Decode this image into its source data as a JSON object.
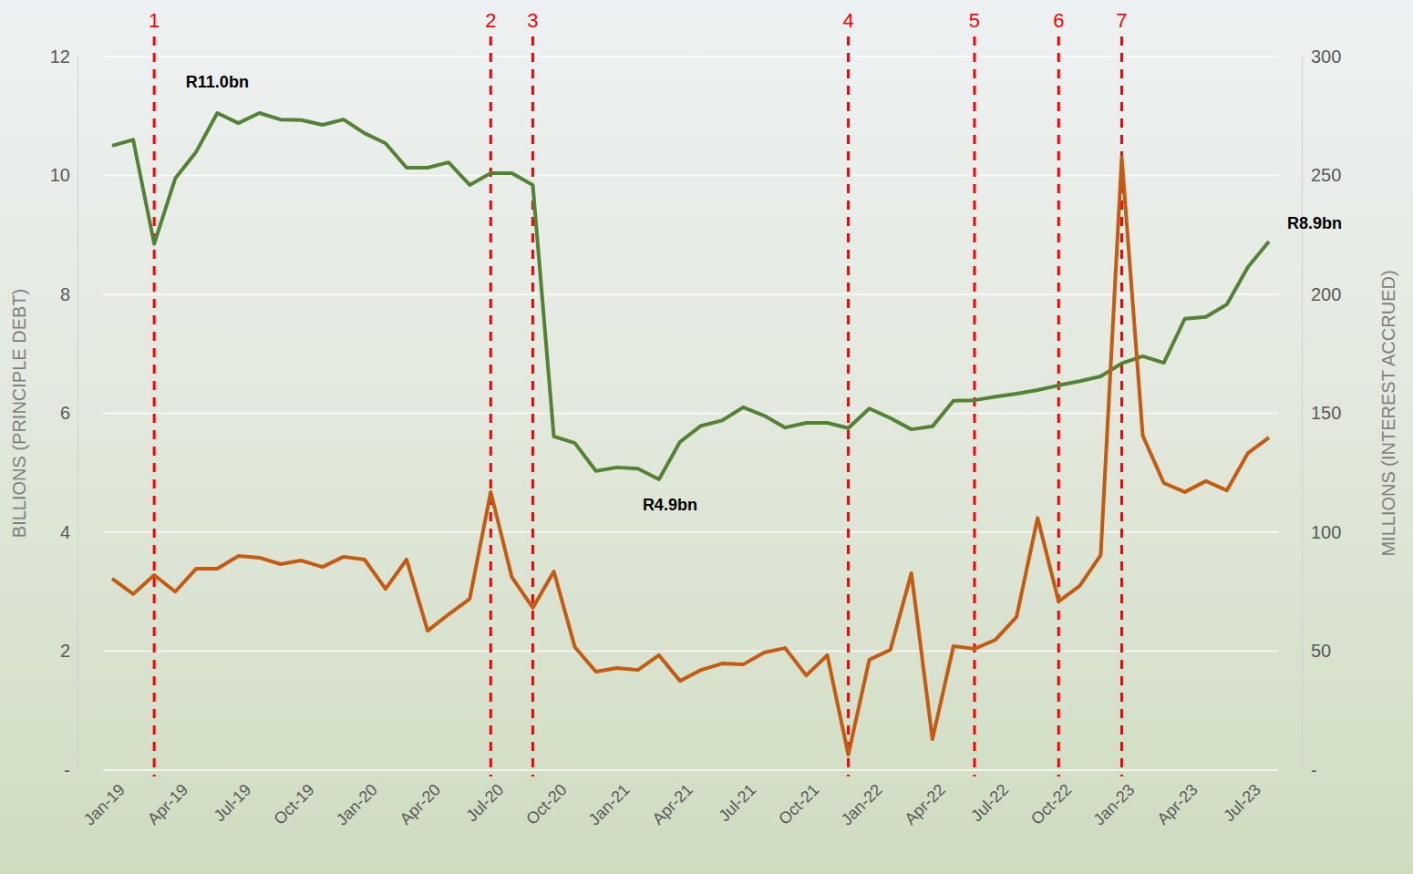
{
  "chart_data": {
    "type": "line",
    "categories": [
      "Jan-19",
      null,
      null,
      "Apr-19",
      null,
      null,
      "Jul-19",
      null,
      null,
      "Oct-19",
      null,
      null,
      "Jan-20",
      null,
      null,
      "Apr-20",
      null,
      null,
      "Jul-20",
      null,
      null,
      "Oct-20",
      null,
      null,
      "Jan-21",
      null,
      null,
      "Apr-21",
      null,
      null,
      "Jul-21",
      null,
      null,
      "Oct-21",
      null,
      null,
      "Jan-22",
      null,
      null,
      "Apr-22",
      null,
      null,
      "Jul-22",
      null,
      null,
      "Oct-22",
      null,
      null,
      "Jan-23",
      null,
      null,
      "Apr-23",
      null,
      null,
      "Jul-23",
      null
    ],
    "ylabel": "BILLIONS (PRINCIPLE DEBT)",
    "y2label": "MILLIONS (INTEREST ACCRUED)",
    "ylim": [
      0,
      12
    ],
    "yticks": [
      {
        "value": 0,
        "label": "-"
      },
      2,
      4,
      6,
      8,
      10,
      12
    ],
    "y2lim": [
      0,
      300
    ],
    "y2ticks": [
      {
        "value": 0,
        "label": "-"
      },
      50,
      100,
      150,
      200,
      250,
      300
    ],
    "grid": true,
    "series": [
      {
        "color": "#548235",
        "values": [
          10.5,
          10.6,
          8.85,
          9.95,
          10.4,
          11.05,
          10.88,
          11.05,
          10.94,
          10.93,
          10.85,
          10.94,
          10.71,
          10.54,
          10.13,
          10.13,
          10.22,
          9.84,
          10.04,
          10.04,
          9.84,
          5.61,
          5.5,
          5.03,
          5.09,
          5.07,
          4.89,
          5.52,
          5.79,
          5.88,
          6.1,
          5.96,
          5.76,
          5.84,
          5.84,
          5.75,
          6.08,
          5.92,
          5.73,
          5.78,
          6.21,
          6.22,
          6.28,
          6.33,
          6.39,
          6.47,
          6.54,
          6.62,
          6.84,
          6.96,
          6.85,
          7.59,
          7.62,
          7.83,
          8.46,
          8.89
        ],
        "labels": [
          {
            "text": "R11.0bn",
            "index": 5,
            "position": "above"
          },
          {
            "text": "R4.9bn",
            "index": 26,
            "position": "below"
          },
          {
            "text": "R8.9bn",
            "index": 55,
            "position": "right"
          }
        ]
      },
      {
        "color": "#C55A11",
        "axis": "y2",
        "values": [
          80.5,
          74,
          82,
          75,
          84.7,
          84.7,
          90,
          89.3,
          86.6,
          88.1,
          85.4,
          89.7,
          88.5,
          76.2,
          88.5,
          58.6,
          65.5,
          72,
          116.9,
          81.2,
          68.2,
          83.5,
          51.7,
          41.4,
          42.9,
          42.1,
          48.3,
          37.5,
          42.1,
          44.8,
          44.4,
          49.4,
          51.3,
          39.8,
          48.3,
          6.5,
          46.4,
          50.6,
          82.8,
          13,
          52.1,
          51,
          54.8,
          64.4,
          106,
          70.9,
          77.4,
          90.4,
          257.5,
          140.6,
          120.7,
          116.9,
          121.5,
          117.6,
          133.3,
          139.8
        ]
      }
    ],
    "annotations": [
      {
        "text": "1",
        "index": 2,
        "color": "#FF0000",
        "line_style": "dashed"
      },
      {
        "text": "2",
        "index": 18,
        "color": "#FF0000",
        "line_style": "dashed"
      },
      {
        "text": "3",
        "index": 20,
        "color": "#FF0000",
        "line_style": "dashed"
      },
      {
        "text": "4",
        "index": 35,
        "color": "#FF0000",
        "line_style": "dashed"
      },
      {
        "text": "5",
        "index": 41,
        "color": "#FF0000",
        "line_style": "dashed"
      },
      {
        "text": "6",
        "index": 45,
        "color": "#FF0000",
        "line_style": "dashed"
      },
      {
        "text": "7",
        "index": 48,
        "color": "#FF0000",
        "line_style": "dashed"
      }
    ]
  }
}
